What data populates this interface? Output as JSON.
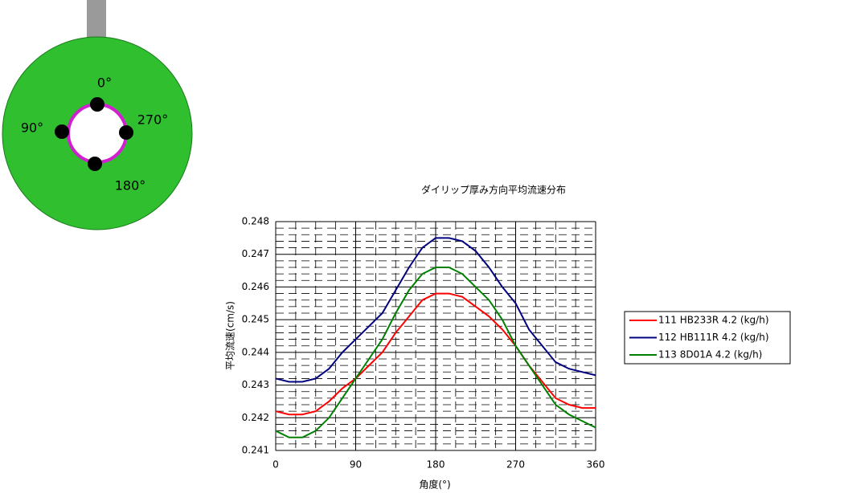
{
  "diagram": {
    "labels": [
      "0°",
      "90°",
      "270°",
      "180°"
    ]
  },
  "chart_data": {
    "type": "line",
    "title": "ダイリップ厚み方向平均流速分布",
    "x_label": "角度(°)",
    "y_label": "平均流速(cm/s)",
    "x": [
      0,
      15,
      30,
      45,
      60,
      75,
      90,
      105,
      120,
      135,
      150,
      165,
      180,
      195,
      210,
      225,
      240,
      255,
      270,
      285,
      300,
      315,
      330,
      345,
      360
    ],
    "series": [
      {
        "name": "111 HB233R 4.2 (kg/h)",
        "color": "#ff0000",
        "values": [
          0.2422,
          0.2421,
          0.2421,
          0.2422,
          0.2425,
          0.2429,
          0.2432,
          0.2436,
          0.244,
          0.2446,
          0.2451,
          0.2456,
          0.2458,
          0.2458,
          0.2457,
          0.2454,
          0.2451,
          0.2447,
          0.2442,
          0.2436,
          0.2431,
          0.2426,
          0.2424,
          0.2423,
          0.2423
        ]
      },
      {
        "name": "112 HB111R 4.2 (kg/h)",
        "color": "#000080",
        "values": [
          0.2432,
          0.2431,
          0.2431,
          0.2432,
          0.2435,
          0.244,
          0.2444,
          0.2448,
          0.2452,
          0.2459,
          0.2466,
          0.2472,
          0.2475,
          0.2475,
          0.2474,
          0.2471,
          0.2466,
          0.246,
          0.2455,
          0.2447,
          0.2442,
          0.2437,
          0.2435,
          0.2434,
          0.2433
        ]
      },
      {
        "name": "113 8D01A 4.2 (kg/h)",
        "color": "#008000",
        "values": [
          0.2416,
          0.2414,
          0.2414,
          0.2416,
          0.242,
          0.2426,
          0.2432,
          0.2438,
          0.2444,
          0.2452,
          0.2459,
          0.2464,
          0.2466,
          0.2466,
          0.2464,
          0.246,
          0.2456,
          0.245,
          0.2442,
          0.2436,
          0.243,
          0.2424,
          0.2421,
          0.2419,
          0.2417
        ]
      }
    ],
    "xlim": [
      0,
      360
    ],
    "xticks": [
      0,
      90,
      180,
      270,
      360
    ],
    "ylim": [
      0.241,
      0.248
    ],
    "yticks": [
      0.241,
      0.242,
      0.243,
      0.244,
      0.245,
      0.246,
      0.247,
      0.248
    ],
    "grid": true,
    "xminor": [
      22.5,
      45,
      67.5,
      112.5,
      135,
      157.5,
      202.5,
      225,
      247.5,
      292.5,
      315,
      337.5
    ],
    "yminor": [
      0.2412,
      0.2414,
      0.2416,
      0.2418,
      0.2422,
      0.2424,
      0.2426,
      0.2428,
      0.2432,
      0.2434,
      0.2436,
      0.2438,
      0.2442,
      0.2444,
      0.2446,
      0.2448,
      0.2452,
      0.2454,
      0.2456,
      0.2458,
      0.2462,
      0.2464,
      0.2466,
      0.2468,
      0.2472,
      0.2474,
      0.2476,
      0.2478
    ],
    "legend": "right"
  }
}
